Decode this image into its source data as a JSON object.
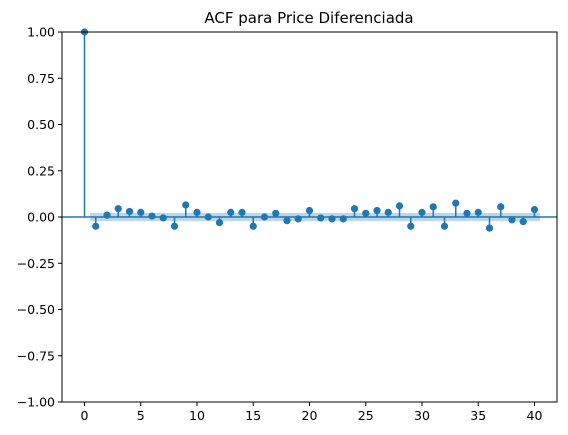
{
  "chart_data": {
    "type": "stem",
    "title": "ACF para Price Diferenciada",
    "xlabel": "",
    "ylabel": "",
    "xlim": [
      -2,
      42
    ],
    "ylim": [
      -1.0,
      1.0
    ],
    "xticks": [
      0,
      5,
      10,
      15,
      20,
      25,
      30,
      35,
      40
    ],
    "xtick_labels": [
      "0",
      "5",
      "10",
      "15",
      "20",
      "25",
      "30",
      "35",
      "40"
    ],
    "yticks": [
      1.0,
      0.75,
      0.5,
      0.25,
      0.0,
      -0.25,
      -0.5,
      -0.75,
      -1.0
    ],
    "ytick_labels": [
      "1.00",
      "0.75",
      "0.50",
      "0.25",
      "0.00",
      "−0.25",
      "−0.50",
      "−0.75",
      "−1.00"
    ],
    "grid": false,
    "legend": "none",
    "lags": [
      0,
      1,
      2,
      3,
      4,
      5,
      6,
      7,
      8,
      9,
      10,
      11,
      12,
      13,
      14,
      15,
      16,
      17,
      18,
      19,
      20,
      21,
      22,
      23,
      24,
      25,
      26,
      27,
      28,
      29,
      30,
      31,
      32,
      33,
      34,
      35,
      36,
      37,
      38,
      39,
      40
    ],
    "values": [
      1.0,
      -0.05,
      0.01,
      0.045,
      0.03,
      0.025,
      0.005,
      -0.005,
      -0.05,
      0.065,
      0.025,
      0.0,
      -0.03,
      0.025,
      0.025,
      -0.05,
      0.0,
      0.02,
      -0.02,
      -0.01,
      0.035,
      -0.005,
      -0.01,
      -0.01,
      0.045,
      0.02,
      0.035,
      0.025,
      0.06,
      -0.05,
      0.025,
      0.055,
      -0.05,
      0.075,
      0.02,
      0.025,
      -0.06,
      0.055,
      -0.015,
      -0.025,
      0.04
    ],
    "confidence_band": 0.022,
    "colors": {
      "marker": "#1f77b4",
      "band": "#a6c8e3",
      "zero_line": "#1f77b4",
      "axes": "#000000"
    }
  }
}
